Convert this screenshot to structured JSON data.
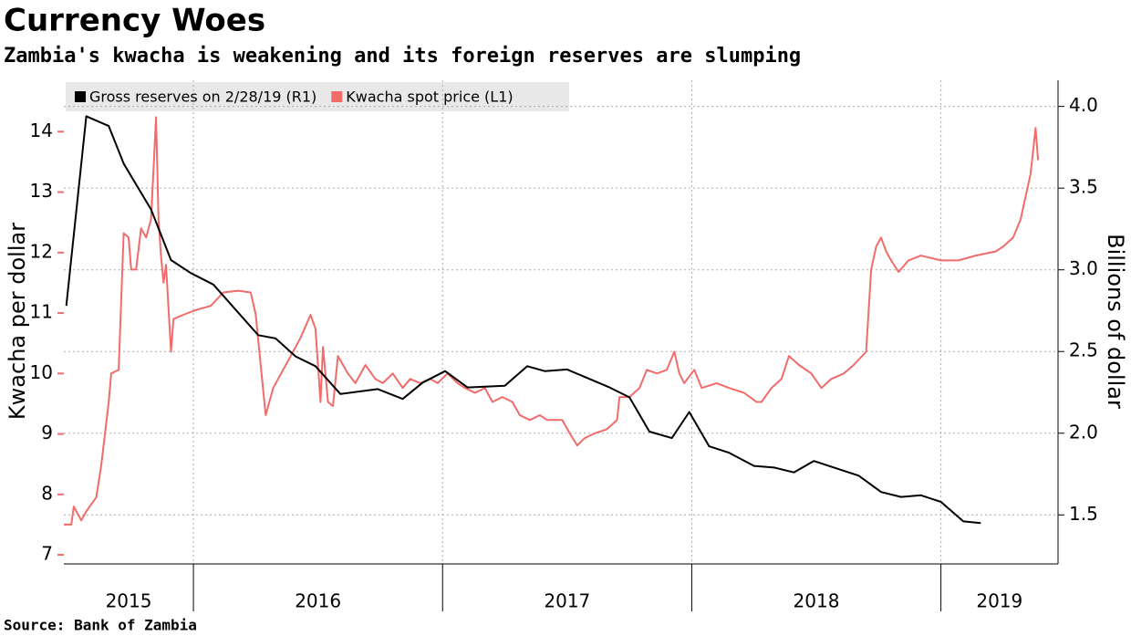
{
  "chart_data": {
    "type": "line",
    "title": "Currency Woes",
    "subtitle": "Zambia's kwacha is weakening and its foreign reserves are slumping",
    "source": "Source: Bank of Zambia",
    "ylabel": "Kwacha per dollar",
    "y2label": "Billions of dollar",
    "xlim": [
      2015.48,
      2019.47
    ],
    "xticks": [
      2016,
      2017,
      2018,
      2019
    ],
    "year_labels": [
      "2015",
      "2016",
      "2017",
      "2018",
      "2019"
    ],
    "ylim": [
      6.85,
      14.85
    ],
    "yticks": [
      7,
      8,
      9,
      10,
      11,
      12,
      13,
      14
    ],
    "y2lim": [
      1.2,
      4.16
    ],
    "y2ticks": [
      {
        "value": 1.5,
        "label": "1.5"
      },
      {
        "value": 2,
        "label": "2.0"
      },
      {
        "value": 2.5,
        "label": "2.5"
      },
      {
        "value": 3,
        "label": "3.0"
      },
      {
        "value": 3.5,
        "label": "3.5"
      },
      {
        "value": 4,
        "label": "4.0"
      }
    ],
    "grid": true,
    "legend": "top-left",
    "series": [
      {
        "name": "Gross reserves on 2/28/19 (R1)",
        "color": "#000000",
        "axis": "y2",
        "x": [
          2015.49,
          2015.57,
          2015.66,
          2015.72,
          2015.83,
          2015.91,
          2015.99,
          2016.08,
          2016.26,
          2016.33,
          2016.41,
          2016.49,
          2016.59,
          2016.74,
          2016.84,
          2016.92,
          2017.01,
          2017.1,
          2017.25,
          2017.34,
          2017.41,
          2017.5,
          2017.67,
          2017.75,
          2017.83,
          2017.92,
          2017.99,
          2018.07,
          2018.15,
          2018.25,
          2018.33,
          2018.41,
          2018.49,
          2018.67,
          2018.76,
          2018.84,
          2018.92,
          2019.0,
          2019.09,
          2019.16
        ],
        "values": [
          2.78,
          3.94,
          3.88,
          3.65,
          3.37,
          3.06,
          2.98,
          2.91,
          2.6,
          2.58,
          2.47,
          2.41,
          2.24,
          2.27,
          2.21,
          2.31,
          2.38,
          2.28,
          2.29,
          2.41,
          2.38,
          2.39,
          2.28,
          2.22,
          2.01,
          1.97,
          2.13,
          1.92,
          1.88,
          1.8,
          1.79,
          1.76,
          1.83,
          1.74,
          1.64,
          1.61,
          1.62,
          1.58,
          1.46,
          1.45
        ]
      },
      {
        "name": "Kwacha spot price (L1)",
        "color": "#f26b6b",
        "axis": "y",
        "x": [
          2015.48,
          2015.51,
          2015.52,
          2015.55,
          2015.57,
          2015.61,
          2015.63,
          2015.66,
          2015.67,
          2015.7,
          2015.72,
          2015.74,
          2015.75,
          2015.77,
          2015.79,
          2015.81,
          2015.83,
          2015.85,
          2015.86,
          2015.87,
          2015.88,
          2015.89,
          2015.91,
          2015.92,
          2015.96,
          2016.01,
          2016.07,
          2016.12,
          2016.18,
          2016.23,
          2016.25,
          2016.27,
          2016.29,
          2016.3,
          2016.32,
          2016.36,
          2016.4,
          2016.43,
          2016.47,
          2016.49,
          2016.51,
          2016.52,
          2016.54,
          2016.56,
          2016.58,
          2016.62,
          2016.65,
          2016.69,
          2016.73,
          2016.76,
          2016.8,
          2016.84,
          2016.87,
          2016.91,
          2016.95,
          2016.98,
          2017.02,
          2017.06,
          2017.09,
          2017.13,
          2017.17,
          2017.2,
          2017.24,
          2017.28,
          2017.31,
          2017.35,
          2017.39,
          2017.42,
          2017.48,
          2017.51,
          2017.54,
          2017.57,
          2017.61,
          2017.66,
          2017.7,
          2017.71,
          2017.75,
          2017.79,
          2017.82,
          2017.86,
          2017.9,
          2017.93,
          2017.95,
          2017.97,
          2018.01,
          2018.04,
          2018.1,
          2018.15,
          2018.21,
          2018.26,
          2018.28,
          2018.32,
          2018.36,
          2018.39,
          2018.43,
          2018.48,
          2018.52,
          2018.56,
          2018.61,
          2018.65,
          2018.7,
          2018.72,
          2018.74,
          2018.76,
          2018.78,
          2018.8,
          2018.83,
          2018.87,
          2018.92,
          2019.0,
          2019.07,
          2019.14,
          2019.22,
          2019.25,
          2019.29,
          2019.32,
          2019.34,
          2019.36,
          2019.38,
          2019.39
        ],
        "values": [
          7.5,
          7.5,
          7.8,
          7.57,
          7.72,
          7.95,
          8.48,
          9.53,
          10.0,
          10.06,
          12.32,
          12.25,
          11.72,
          11.72,
          12.4,
          12.25,
          12.55,
          14.24,
          12.55,
          11.95,
          11.5,
          11.8,
          10.36,
          10.9,
          10.97,
          11.05,
          11.12,
          11.34,
          11.37,
          11.34,
          10.97,
          10.14,
          9.31,
          9.46,
          9.76,
          10.06,
          10.36,
          10.59,
          10.97,
          10.74,
          9.53,
          10.44,
          9.53,
          9.46,
          10.29,
          10.0,
          9.84,
          10.14,
          9.91,
          9.84,
          10.0,
          9.76,
          9.91,
          9.84,
          9.91,
          9.84,
          10.0,
          9.84,
          9.76,
          9.68,
          9.76,
          9.53,
          9.61,
          9.53,
          9.31,
          9.23,
          9.31,
          9.23,
          9.23,
          9.01,
          8.81,
          8.93,
          9.01,
          9.08,
          9.23,
          9.61,
          9.61,
          9.76,
          10.06,
          10.0,
          10.06,
          10.36,
          10.0,
          9.84,
          10.06,
          9.76,
          9.84,
          9.76,
          9.68,
          9.53,
          9.53,
          9.76,
          9.91,
          10.29,
          10.14,
          10.0,
          9.76,
          9.91,
          10.0,
          10.14,
          10.36,
          11.72,
          12.1,
          12.25,
          12.02,
          11.87,
          11.68,
          11.87,
          11.95,
          11.87,
          11.87,
          11.95,
          12.02,
          12.1,
          12.25,
          12.55,
          12.93,
          13.3,
          14.06,
          13.53
        ]
      }
    ]
  }
}
